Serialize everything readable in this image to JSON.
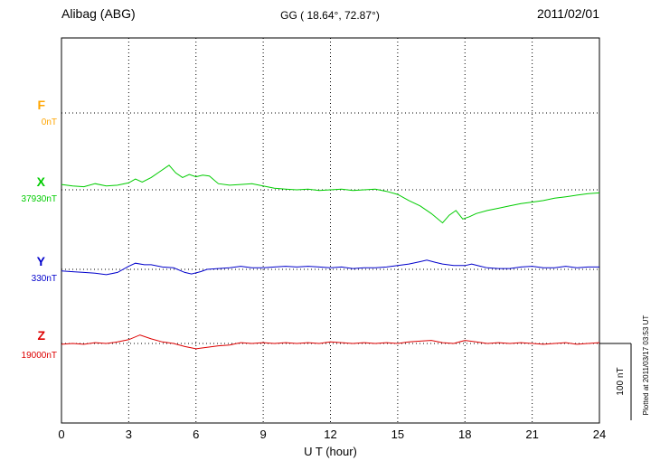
{
  "header": {
    "station": "Alibag (ABG)",
    "coordinates": "GG ( 18.64°,  72.87°)",
    "date": "2011/02/01"
  },
  "footer": {
    "plotted_at": "Plotted at 2011/03/17 03:53 UT"
  },
  "chart_data": {
    "type": "line",
    "xlabel": "U T (hour)",
    "x_range": [
      0,
      24
    ],
    "x_ticks": [
      0,
      3,
      6,
      9,
      12,
      15,
      18,
      21,
      24
    ],
    "grid": "dotted",
    "scale_bar": {
      "label": "100 nT",
      "nT": 100
    },
    "series": [
      {
        "name": "F",
        "color": "#FFA500",
        "baseline_label": "0nT",
        "baseline_value": 0,
        "points": []
      },
      {
        "name": "X",
        "color": "#00CC00",
        "baseline_label": "37930nT",
        "baseline_value": 37930,
        "points": [
          [
            0,
            37937
          ],
          [
            0.5,
            37935
          ],
          [
            1,
            37934
          ],
          [
            1.5,
            37938
          ],
          [
            2,
            37935
          ],
          [
            2.5,
            37936
          ],
          [
            3,
            37939
          ],
          [
            3.3,
            37944
          ],
          [
            3.6,
            37940
          ],
          [
            4,
            37946
          ],
          [
            4.4,
            37954
          ],
          [
            4.8,
            37962
          ],
          [
            5.1,
            37952
          ],
          [
            5.4,
            37946
          ],
          [
            5.7,
            37950
          ],
          [
            6,
            37947
          ],
          [
            6.3,
            37949
          ],
          [
            6.6,
            37948
          ],
          [
            7,
            37938
          ],
          [
            7.5,
            37936
          ],
          [
            8,
            37937
          ],
          [
            8.5,
            37938
          ],
          [
            9,
            37935
          ],
          [
            9.5,
            37932
          ],
          [
            10,
            37931
          ],
          [
            10.5,
            37930
          ],
          [
            11,
            37931
          ],
          [
            11.5,
            37929
          ],
          [
            12,
            37930
          ],
          [
            12.5,
            37931
          ],
          [
            13,
            37929
          ],
          [
            13.5,
            37930
          ],
          [
            14,
            37931
          ],
          [
            14.5,
            37928
          ],
          [
            15,
            37924
          ],
          [
            15.5,
            37916
          ],
          [
            16,
            37909
          ],
          [
            16.5,
            37899
          ],
          [
            17,
            37887
          ],
          [
            17.3,
            37897
          ],
          [
            17.6,
            37903
          ],
          [
            17.9,
            37892
          ],
          [
            18.2,
            37895
          ],
          [
            18.5,
            37899
          ],
          [
            19,
            37903
          ],
          [
            19.5,
            37906
          ],
          [
            20,
            37909
          ],
          [
            20.5,
            37912
          ],
          [
            21,
            37914
          ],
          [
            21.5,
            37916
          ],
          [
            22,
            37919
          ],
          [
            22.5,
            37921
          ],
          [
            23,
            37923
          ],
          [
            23.5,
            37925
          ],
          [
            24,
            37926
          ]
        ]
      },
      {
        "name": "Y",
        "color": "#0000CC",
        "baseline_label": "330nT",
        "baseline_value": 330,
        "points": [
          [
            0,
            328
          ],
          [
            0.5,
            327
          ],
          [
            1,
            326
          ],
          [
            1.5,
            325
          ],
          [
            2,
            323
          ],
          [
            2.5,
            326
          ],
          [
            3,
            334
          ],
          [
            3.3,
            338
          ],
          [
            3.7,
            336
          ],
          [
            4,
            336
          ],
          [
            4.5,
            333
          ],
          [
            5,
            332
          ],
          [
            5.5,
            326
          ],
          [
            5.8,
            324
          ],
          [
            6.2,
            327
          ],
          [
            6.5,
            330
          ],
          [
            7,
            331
          ],
          [
            7.5,
            332
          ],
          [
            8,
            334
          ],
          [
            8.5,
            332
          ],
          [
            9,
            332
          ],
          [
            9.5,
            333
          ],
          [
            10,
            334
          ],
          [
            10.5,
            333
          ],
          [
            11,
            334
          ],
          [
            11.5,
            333
          ],
          [
            12,
            332
          ],
          [
            12.5,
            333
          ],
          [
            13,
            331
          ],
          [
            13.5,
            332
          ],
          [
            14,
            332
          ],
          [
            14.5,
            333
          ],
          [
            15,
            335
          ],
          [
            15.5,
            337
          ],
          [
            16,
            340
          ],
          [
            16.3,
            342
          ],
          [
            16.7,
            339
          ],
          [
            17,
            337
          ],
          [
            17.5,
            335
          ],
          [
            18,
            335
          ],
          [
            18.3,
            337
          ],
          [
            18.7,
            334
          ],
          [
            19,
            332
          ],
          [
            19.5,
            331
          ],
          [
            20,
            331
          ],
          [
            20.5,
            333
          ],
          [
            21,
            334
          ],
          [
            21.5,
            332
          ],
          [
            22,
            332
          ],
          [
            22.5,
            334
          ],
          [
            23,
            332
          ],
          [
            23.5,
            333
          ],
          [
            24,
            333
          ]
        ]
      },
      {
        "name": "Z",
        "color": "#DD0000",
        "baseline_label": "19000nT",
        "baseline_value": 19000,
        "points": [
          [
            0,
            18999
          ],
          [
            0.5,
            19000
          ],
          [
            1,
            18999
          ],
          [
            1.5,
            19001
          ],
          [
            2,
            19000
          ],
          [
            2.5,
            19002
          ],
          [
            3,
            19005
          ],
          [
            3.5,
            19011
          ],
          [
            4,
            19006
          ],
          [
            4.5,
            19002
          ],
          [
            5,
            19000
          ],
          [
            5.5,
            18996
          ],
          [
            6,
            18993
          ],
          [
            6.5,
            18995
          ],
          [
            7,
            18997
          ],
          [
            7.5,
            18998
          ],
          [
            8,
            19001
          ],
          [
            8.5,
            19000
          ],
          [
            9,
            19001
          ],
          [
            9.5,
            19000
          ],
          [
            10,
            19001
          ],
          [
            10.5,
            19000
          ],
          [
            11,
            19001
          ],
          [
            11.5,
            19000
          ],
          [
            12,
            19002
          ],
          [
            12.5,
            19001
          ],
          [
            13,
            19000
          ],
          [
            13.5,
            19001
          ],
          [
            14,
            19000
          ],
          [
            14.5,
            19001
          ],
          [
            15,
            19000
          ],
          [
            15.5,
            19002
          ],
          [
            16,
            19003
          ],
          [
            16.5,
            19004
          ],
          [
            17,
            19001
          ],
          [
            17.5,
            19000
          ],
          [
            18,
            19004
          ],
          [
            18.5,
            19002
          ],
          [
            19,
            19000
          ],
          [
            19.5,
            19001
          ],
          [
            20,
            19000
          ],
          [
            20.5,
            19001
          ],
          [
            21,
            19000
          ],
          [
            21.5,
            18999
          ],
          [
            22,
            19000
          ],
          [
            22.5,
            19001
          ],
          [
            23,
            18999
          ],
          [
            23.5,
            19000
          ],
          [
            24,
            19001
          ]
        ]
      }
    ]
  }
}
